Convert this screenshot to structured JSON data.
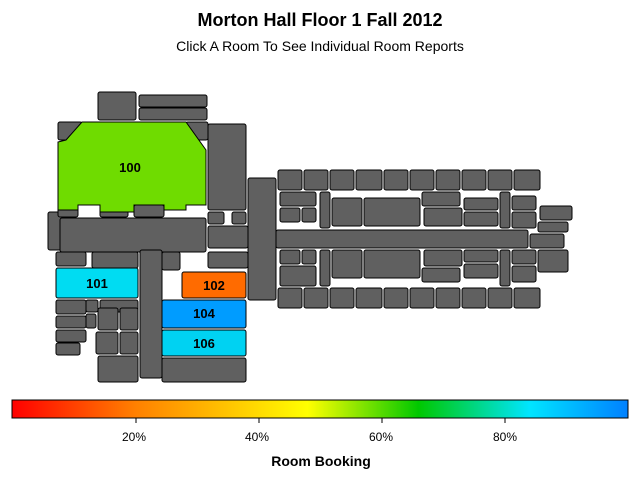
{
  "header": {
    "title": "Morton Hall Floor 1 Fall 2012",
    "subtitle": "Click A Room To See Individual Room Reports"
  },
  "colors": {
    "structure_fill": "#606060",
    "outline": "#000000",
    "scale_stops": [
      "#ff0000",
      "#ff8000",
      "#ffff00",
      "#00c800",
      "#00e5ff",
      "#0080ff"
    ]
  },
  "rooms": [
    {
      "id": "100",
      "label": "100",
      "color": "#6fdc00"
    },
    {
      "id": "101",
      "label": "101",
      "color": "#00dcf2"
    },
    {
      "id": "102",
      "label": "102",
      "color": "#ff6b00"
    },
    {
      "id": "104",
      "label": "104",
      "color": "#009cff"
    },
    {
      "id": "106",
      "label": "106",
      "color": "#00d2f2"
    }
  ],
  "legend": {
    "title": "Room Booking",
    "ticks": [
      "20%",
      "40%",
      "60%",
      "80%"
    ]
  }
}
